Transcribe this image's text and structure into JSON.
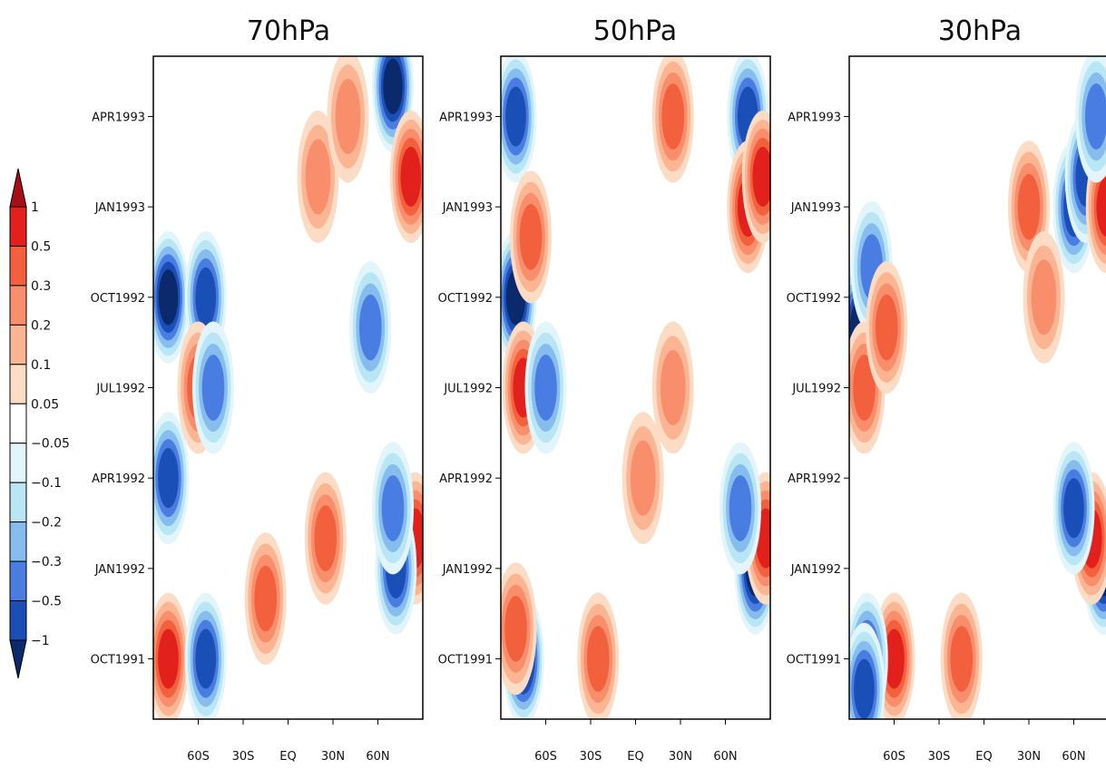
{
  "chart_data": {
    "type": "heatmap",
    "x_ticks": [
      "60S",
      "30S",
      "EQ",
      "30N",
      "60N"
    ],
    "y_ticks": [
      "OCT1991",
      "JAN1992",
      "APR1992",
      "JUL1992",
      "OCT1992",
      "JAN1993",
      "APR1993"
    ],
    "y_range": [
      "AUG1991",
      "JUN1993"
    ],
    "colorbar": {
      "levels": [
        "1",
        "0.5",
        "0.3",
        "0.2",
        "0.1",
        "0.05",
        "−0.05",
        "−0.1",
        "−0.2",
        "−0.3",
        "−0.5",
        "−1"
      ],
      "colors": [
        "#a50f15",
        "#e2211c",
        "#f2603e",
        "#f98e6c",
        "#fbb593",
        "#fcdcc5",
        "#ffffff",
        "#e1f5fb",
        "#b8e6f4",
        "#87bcef",
        "#4a7de1",
        "#1b4fb8",
        "#0a2a6b"
      ],
      "extend": "both",
      "position": "left"
    },
    "panels": [
      {
        "title": "70hPa",
        "features": [
          {
            "lat": -80,
            "time": "OCT1992",
            "value": -1.0
          },
          {
            "lat": -80,
            "time": "APR1992",
            "value": -0.8
          },
          {
            "lat": -80,
            "time": "OCT1991",
            "value": 0.5
          },
          {
            "lat": -55,
            "time": "OCT1992",
            "value": -0.8
          },
          {
            "lat": -55,
            "time": "OCT1991",
            "value": -0.8
          },
          {
            "lat": -60,
            "time": "JUL1992",
            "value": 0.4
          },
          {
            "lat": -50,
            "time": "JUL1992",
            "value": -0.3
          },
          {
            "lat": 25,
            "time": "FEB1992",
            "value": 0.3
          },
          {
            "lat": 20,
            "time": "FEB1993",
            "value": 0.2
          },
          {
            "lat": -15,
            "time": "DEC1991",
            "value": 0.3
          },
          {
            "lat": 70,
            "time": "MAY1993",
            "value": -1.0
          },
          {
            "lat": 82,
            "time": "FEB1993",
            "value": 0.6
          },
          {
            "lat": 85,
            "time": "FEB1992",
            "value": 0.6
          },
          {
            "lat": 72,
            "time": "JAN1992",
            "value": -0.5
          },
          {
            "lat": 70,
            "time": "MAR1992",
            "value": -0.3
          },
          {
            "lat": 55,
            "time": "SEP1992",
            "value": -0.3
          },
          {
            "lat": 40,
            "time": "APR1993",
            "value": 0.2
          }
        ]
      },
      {
        "title": "50hPa",
        "features": [
          {
            "lat": -80,
            "time": "OCT1992",
            "value": -1.0
          },
          {
            "lat": -80,
            "time": "APR1993",
            "value": -0.6
          },
          {
            "lat": -75,
            "time": "JUL1992",
            "value": 0.5
          },
          {
            "lat": -60,
            "time": "JUL1992",
            "value": -0.4
          },
          {
            "lat": -75,
            "time": "OCT1991",
            "value": -1.0
          },
          {
            "lat": -80,
            "time": "NOV1991",
            "value": 0.4
          },
          {
            "lat": -70,
            "time": "DEC1992",
            "value": 0.3
          },
          {
            "lat": 25,
            "time": "APR1993",
            "value": 0.3
          },
          {
            "lat": 5,
            "time": "APR1992",
            "value": 0.2
          },
          {
            "lat": 25,
            "time": "JUL1992",
            "value": 0.2
          },
          {
            "lat": 75,
            "time": "APR1993",
            "value": -0.7
          },
          {
            "lat": 75,
            "time": "JAN1993",
            "value": 0.6
          },
          {
            "lat": 85,
            "time": "FEB1993",
            "value": 0.6
          },
          {
            "lat": 80,
            "time": "JAN1992",
            "value": -1.0
          },
          {
            "lat": 87,
            "time": "FEB1992",
            "value": 0.6
          },
          {
            "lat": 70,
            "time": "MAR1992",
            "value": -0.3
          },
          {
            "lat": -25,
            "time": "OCT1991",
            "value": 0.3
          }
        ]
      },
      {
        "title": "30hPa",
        "features": [
          {
            "lat": -83,
            "time": "SEP1992",
            "value": -1.0
          },
          {
            "lat": -75,
            "time": "NOV1992",
            "value": -0.4
          },
          {
            "lat": -80,
            "time": "JUL1992",
            "value": 0.4
          },
          {
            "lat": -65,
            "time": "SEP1992",
            "value": 0.4
          },
          {
            "lat": -60,
            "time": "OCT1991",
            "value": 0.5
          },
          {
            "lat": -78,
            "time": "OCT1991",
            "value": -0.6
          },
          {
            "lat": -80,
            "time": "SEP1991",
            "value": -0.8
          },
          {
            "lat": -15,
            "time": "OCT1991",
            "value": 0.4
          },
          {
            "lat": 30,
            "time": "JAN1993",
            "value": 0.3
          },
          {
            "lat": 60,
            "time": "JAN1993",
            "value": -0.6
          },
          {
            "lat": 68,
            "time": "FEB1993",
            "value": -0.8
          },
          {
            "lat": 82,
            "time": "JAN1993",
            "value": 0.6
          },
          {
            "lat": 75,
            "time": "APR1993",
            "value": -0.4
          },
          {
            "lat": 80,
            "time": "JAN1992",
            "value": -1.0
          },
          {
            "lat": 72,
            "time": "FEB1992",
            "value": 0.5
          },
          {
            "lat": 60,
            "time": "MAR1992",
            "value": -0.5
          },
          {
            "lat": 40,
            "time": "OCT1992",
            "value": 0.2
          }
        ]
      }
    ]
  }
}
